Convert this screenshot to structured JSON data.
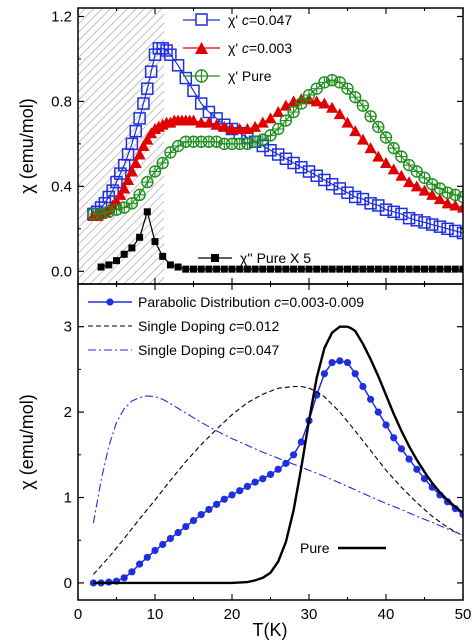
{
  "chart_data": [
    {
      "type": "line",
      "panel": "top",
      "xlim": [
        0,
        50
      ],
      "ylim": [
        -0.06,
        1.24
      ],
      "yticks": [
        0.0,
        0.4,
        0.8,
        1.2
      ],
      "ytick_labels": [
        "0.0",
        "0.4",
        "0.8",
        "1.2"
      ],
      "ylabel": "χ (emu/mol)",
      "shaded_region_x": [
        0,
        11.2
      ],
      "legend_position": "top-right",
      "series": [
        {
          "name": "χ' c=0.047",
          "legend_parts": [
            "χ' ",
            "c",
            "=0.047"
          ],
          "color": "#1f2fe0",
          "marker": "open-square",
          "x": [
            2,
            2.5,
            3,
            3.5,
            4,
            4.5,
            5,
            5.5,
            6,
            6.5,
            7,
            7.5,
            8,
            8.5,
            9,
            9.5,
            10,
            10.5,
            11,
            11.5,
            12,
            13,
            14,
            15,
            16,
            17,
            18,
            19,
            20,
            21,
            22,
            23,
            24,
            25,
            26,
            27,
            28,
            29,
            30,
            31,
            32,
            33,
            34,
            35,
            36,
            37,
            38,
            39,
            40,
            41,
            42,
            43,
            44,
            45,
            46,
            47,
            48,
            49,
            50
          ],
          "values": [
            0.27,
            0.28,
            0.3,
            0.32,
            0.35,
            0.38,
            0.42,
            0.46,
            0.5,
            0.55,
            0.6,
            0.66,
            0.72,
            0.79,
            0.86,
            0.94,
            1.02,
            1.05,
            1.05,
            1.04,
            1.02,
            0.97,
            0.91,
            0.85,
            0.79,
            0.75,
            0.72,
            0.69,
            0.67,
            0.65,
            0.63,
            0.61,
            0.59,
            0.57,
            0.55,
            0.53,
            0.51,
            0.49,
            0.47,
            0.45,
            0.43,
            0.41,
            0.39,
            0.37,
            0.35,
            0.34,
            0.32,
            0.31,
            0.29,
            0.28,
            0.27,
            0.25,
            0.24,
            0.23,
            0.22,
            0.21,
            0.2,
            0.19,
            0.18
          ]
        },
        {
          "name": "χ' c=0.003",
          "legend_parts": [
            "χ' ",
            "c",
            "=0.003"
          ],
          "color": "#e00000",
          "marker": "filled-triangle",
          "x": [
            2,
            2.5,
            3,
            3.5,
            4,
            4.5,
            5,
            5.5,
            6,
            6.5,
            7,
            7.5,
            8,
            8.5,
            9,
            9.5,
            10,
            10.5,
            11,
            11.5,
            12,
            12.5,
            13,
            13.5,
            14,
            14.5,
            15,
            16,
            17,
            18,
            19,
            20,
            21,
            22,
            23,
            24,
            25,
            26,
            27,
            28,
            29,
            30,
            31,
            32,
            33,
            34,
            35,
            36,
            37,
            38,
            39,
            40,
            41,
            42,
            43,
            44,
            45,
            46,
            47,
            48,
            49,
            50
          ],
          "values": [
            0.26,
            0.26,
            0.27,
            0.28,
            0.29,
            0.31,
            0.33,
            0.36,
            0.39,
            0.43,
            0.47,
            0.51,
            0.55,
            0.59,
            0.62,
            0.65,
            0.67,
            0.68,
            0.69,
            0.7,
            0.7,
            0.71,
            0.71,
            0.71,
            0.71,
            0.71,
            0.71,
            0.7,
            0.7,
            0.69,
            0.68,
            0.67,
            0.67,
            0.67,
            0.68,
            0.7,
            0.72,
            0.75,
            0.78,
            0.8,
            0.81,
            0.81,
            0.8,
            0.79,
            0.77,
            0.74,
            0.7,
            0.66,
            0.62,
            0.58,
            0.54,
            0.51,
            0.48,
            0.45,
            0.42,
            0.4,
            0.38,
            0.36,
            0.34,
            0.32,
            0.31,
            0.3
          ]
        },
        {
          "name": "χ' Pure",
          "legend_parts": [
            "χ' Pure"
          ],
          "color": "#1f8f1f",
          "marker": "open-circle-plus",
          "x": [
            2,
            3,
            4,
            5,
            6,
            7,
            8,
            9,
            10,
            11,
            12,
            13,
            14,
            15,
            16,
            17,
            18,
            19,
            20,
            21,
            22,
            23,
            24,
            25,
            26,
            27,
            28,
            29,
            30,
            31,
            32,
            33,
            34,
            35,
            36,
            37,
            38,
            39,
            40,
            41,
            42,
            43,
            44,
            45,
            46,
            47,
            48,
            49,
            50
          ],
          "values": [
            0.27,
            0.27,
            0.28,
            0.29,
            0.3,
            0.32,
            0.36,
            0.42,
            0.47,
            0.51,
            0.56,
            0.59,
            0.61,
            0.61,
            0.61,
            0.61,
            0.61,
            0.6,
            0.6,
            0.6,
            0.6,
            0.61,
            0.62,
            0.64,
            0.67,
            0.71,
            0.75,
            0.79,
            0.83,
            0.86,
            0.89,
            0.9,
            0.89,
            0.86,
            0.82,
            0.78,
            0.73,
            0.68,
            0.63,
            0.58,
            0.54,
            0.5,
            0.47,
            0.44,
            0.41,
            0.39,
            0.37,
            0.36,
            0.35
          ]
        },
        {
          "name": "χ'' Pure X 5",
          "legend_parts": [
            "χ'' Pure X 5"
          ],
          "color": "#000000",
          "marker": "filled-square",
          "x": [
            3,
            4,
            5,
            6,
            7,
            8,
            9,
            10,
            11,
            12,
            13,
            14,
            15,
            16,
            17,
            18,
            19,
            20,
            21,
            22,
            23,
            24,
            25,
            26,
            27,
            28,
            29,
            30,
            31,
            32,
            33,
            34,
            35,
            36,
            37,
            38,
            39,
            40,
            41,
            42,
            43,
            44,
            45,
            46,
            47,
            48,
            49,
            50
          ],
          "values": [
            0.02,
            0.03,
            0.05,
            0.08,
            0.11,
            0.16,
            0.28,
            0.14,
            0.07,
            0.03,
            0.02,
            0.01,
            0.01,
            0.01,
            0.01,
            0.01,
            0.01,
            0.01,
            0.01,
            0.01,
            0.01,
            0.01,
            0.01,
            0.01,
            0.01,
            0.01,
            0.01,
            0.01,
            0.01,
            0.01,
            0.01,
            0.01,
            0.01,
            0.01,
            0.01,
            0.01,
            0.01,
            0.01,
            0.01,
            0.01,
            0.01,
            0.01,
            0.01,
            0.01,
            0.01,
            0.01,
            0.01,
            0.01
          ]
        }
      ]
    },
    {
      "type": "line",
      "panel": "bottom",
      "xlim": [
        0,
        50
      ],
      "ylim": [
        -0.2,
        3.5
      ],
      "xticks": [
        0,
        10,
        20,
        30,
        40,
        50
      ],
      "xtick_labels": [
        "0",
        "10",
        "20",
        "30",
        "40",
        "50"
      ],
      "yticks": [
        0,
        1,
        2,
        3
      ],
      "ytick_labels": [
        "0",
        "1",
        "2",
        "3"
      ],
      "xlabel": "T(K)",
      "ylabel": "χ (emu/mol)",
      "legend_position": "top-left",
      "series": [
        {
          "name": "Parabolic Distribution c=0.003-0.009",
          "legend_parts": [
            "Parabolic Distribution ",
            "c",
            "=0.003-0.009"
          ],
          "color": "#1f2fe0",
          "style": "solid-line-with-filled-circles",
          "x": [
            2,
            3,
            4,
            5,
            6,
            7,
            8,
            9,
            10,
            11,
            12,
            13,
            14,
            15,
            16,
            17,
            18,
            19,
            20,
            21,
            22,
            23,
            24,
            25,
            26,
            27,
            28,
            29,
            30,
            31,
            32,
            33,
            34,
            35,
            36,
            37,
            38,
            39,
            40,
            41,
            42,
            43,
            44,
            45,
            46,
            47,
            48,
            49,
            50
          ],
          "values": [
            0.0,
            0.0,
            0.01,
            0.02,
            0.06,
            0.13,
            0.22,
            0.3,
            0.38,
            0.45,
            0.52,
            0.59,
            0.66,
            0.73,
            0.8,
            0.86,
            0.92,
            0.98,
            1.03,
            1.08,
            1.13,
            1.18,
            1.22,
            1.27,
            1.33,
            1.4,
            1.5,
            1.65,
            1.9,
            2.2,
            2.45,
            2.58,
            2.6,
            2.58,
            2.45,
            2.3,
            2.15,
            2.0,
            1.85,
            1.7,
            1.57,
            1.45,
            1.33,
            1.22,
            1.12,
            1.03,
            0.95,
            0.87,
            0.8
          ]
        },
        {
          "name": "Single Doping c=0.012",
          "legend_parts": [
            "Single Doping ",
            "c",
            "=0.012"
          ],
          "color": "#000000",
          "style": "dashed",
          "x": [
            2,
            4,
            6,
            8,
            10,
            12,
            14,
            16,
            18,
            20,
            22,
            24,
            26,
            28,
            29,
            30,
            31,
            32,
            34,
            36,
            38,
            40,
            42,
            44,
            46,
            48,
            50
          ],
          "values": [
            0.1,
            0.3,
            0.52,
            0.75,
            0.97,
            1.2,
            1.42,
            1.62,
            1.8,
            1.97,
            2.11,
            2.21,
            2.28,
            2.3,
            2.3,
            2.28,
            2.24,
            2.18,
            2.0,
            1.78,
            1.55,
            1.32,
            1.12,
            0.94,
            0.78,
            0.65,
            0.55
          ]
        },
        {
          "name": "Single Doping c=0.047",
          "legend_parts": [
            "Single Doping ",
            "c",
            "=0.047"
          ],
          "color": "#1f2fe0",
          "style": "dash-dot",
          "x": [
            2,
            3,
            4,
            5,
            6,
            7,
            8,
            9,
            10,
            11,
            12,
            14,
            16,
            18,
            20,
            22,
            24,
            26,
            28,
            30,
            32,
            34,
            36,
            38,
            40,
            42,
            44,
            46,
            48,
            50
          ],
          "values": [
            0.7,
            1.2,
            1.6,
            1.88,
            2.04,
            2.13,
            2.17,
            2.19,
            2.18,
            2.15,
            2.1,
            1.99,
            1.88,
            1.78,
            1.69,
            1.61,
            1.53,
            1.46,
            1.39,
            1.32,
            1.25,
            1.17,
            1.09,
            1.01,
            0.93,
            0.86,
            0.78,
            0.71,
            0.63,
            0.56
          ]
        },
        {
          "name": "Pure",
          "legend_parts": [
            "Pure"
          ],
          "color": "#000000",
          "style": "thick-solid",
          "x": [
            2,
            5,
            10,
            15,
            18,
            20,
            22,
            23,
            24,
            25,
            26,
            27,
            28,
            29,
            30,
            31,
            32,
            33,
            34,
            35,
            35.5,
            36,
            37,
            38,
            39,
            40,
            41,
            42,
            43,
            44,
            45,
            46,
            47,
            48,
            49,
            50
          ],
          "values": [
            0,
            0,
            0,
            0,
            0,
            0,
            0.01,
            0.03,
            0.06,
            0.12,
            0.25,
            0.48,
            0.85,
            1.35,
            1.9,
            2.4,
            2.75,
            2.93,
            3.0,
            3.0,
            2.98,
            2.95,
            2.8,
            2.62,
            2.42,
            2.2,
            1.98,
            1.78,
            1.6,
            1.44,
            1.3,
            1.17,
            1.06,
            0.97,
            0.89,
            0.82
          ]
        }
      ]
    }
  ]
}
